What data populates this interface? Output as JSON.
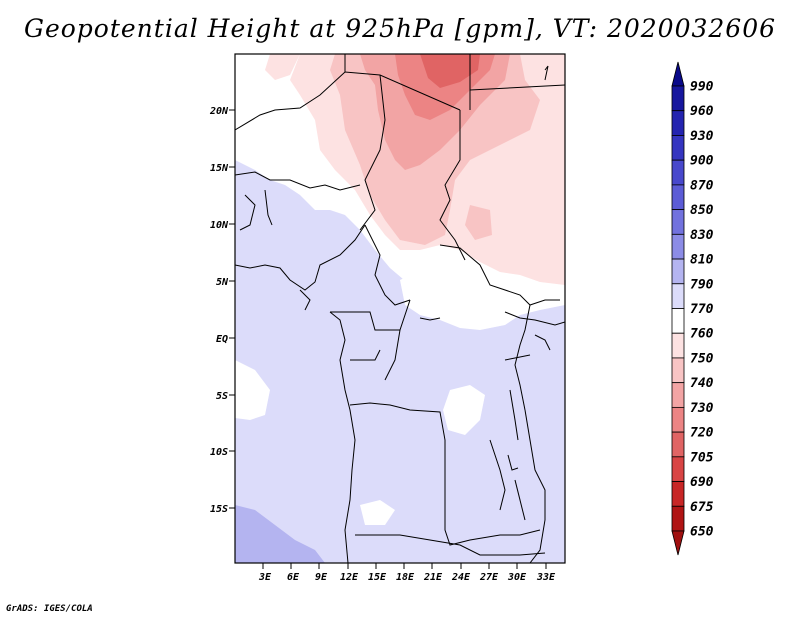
{
  "title": "Geopotential Height at 925hPa [gpm], VT: 2020032606",
  "footer": "GrADS: IGES/COLA",
  "map": {
    "lat_labels": [
      "20N",
      "15N",
      "10N",
      "5N",
      "EQ",
      "5S",
      "10S",
      "15S"
    ],
    "lon_labels": [
      "3E",
      "6E",
      "9E",
      "12E",
      "15E",
      "18E",
      "21E",
      "24E",
      "27E",
      "30E",
      "33E"
    ]
  },
  "colorbar": {
    "levels": [
      "990",
      "960",
      "930",
      "900",
      "870",
      "850",
      "830",
      "810",
      "790",
      "770",
      "760",
      "750",
      "740",
      "730",
      "720",
      "705",
      "690",
      "675",
      "650"
    ],
    "colors": [
      "#0a0a8a",
      "#17179e",
      "#2424b0",
      "#3535c0",
      "#4848cc",
      "#5c5cd6",
      "#7272de",
      "#8c8ce6",
      "#b4b4f0",
      "#dcdcfa",
      "#ffffff",
      "#fde2e2",
      "#f8c4c4",
      "#f2a4a4",
      "#ec8484",
      "#e06464",
      "#d84444",
      "#c82626",
      "#b01414",
      "#a01010"
    ]
  }
}
